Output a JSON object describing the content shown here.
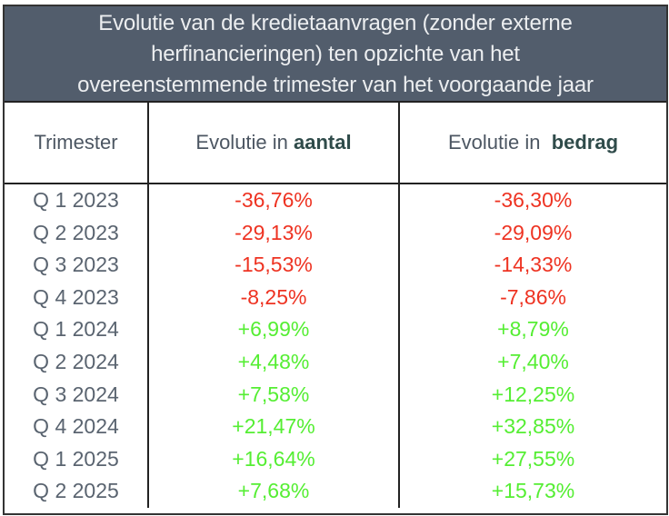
{
  "title_lines": [
    "Evolutie van de kredietaanvragen (zonder externe",
    "herfinancieringen) ten opzichte van het",
    "overeenstemmende trimester van het voorgaande jaar"
  ],
  "colors": {
    "header_bg": "#525d6c",
    "negative": "#ee3322",
    "positive": "#55ee33",
    "bold_heading": "#2f4b4a"
  },
  "chart_data": {
    "type": "table",
    "title": "Evolutie van de kredietaanvragen (zonder externe herfinancieringen) ten opzichte van het overeenstemmende trimester van het voorgaande jaar",
    "columns": [
      {
        "label": "Trimester"
      },
      {
        "prefix": "Evolutie in ",
        "bold": "aantal"
      },
      {
        "prefix": "Evolutie in  ",
        "bold": "bedrag"
      }
    ],
    "rows": [
      {
        "trimester": "Q 1 2023",
        "aantal": "-36,76%",
        "bedrag": "-36,30%"
      },
      {
        "trimester": "Q 2 2023",
        "aantal": "-29,13%",
        "bedrag": "-29,09%"
      },
      {
        "trimester": "Q 3 2023",
        "aantal": "-15,53%",
        "bedrag": "-14,33%"
      },
      {
        "trimester": "Q 4 2023",
        "aantal": "-8,25%",
        "bedrag": "-7,86%"
      },
      {
        "trimester": "Q 1 2024",
        "aantal": "+6,99%",
        "bedrag": "+8,79%"
      },
      {
        "trimester": "Q 2 2024",
        "aantal": "+4,48%",
        "bedrag": "+7,40%"
      },
      {
        "trimester": "Q 3 2024",
        "aantal": "+7,58%",
        "bedrag": "+12,25%"
      },
      {
        "trimester": "Q 4 2024",
        "aantal": "+21,47%",
        "bedrag": "+32,85%"
      },
      {
        "trimester": "Q 1 2025",
        "aantal": "+16,64%",
        "bedrag": "+27,55%"
      },
      {
        "trimester": "Q 2 2025",
        "aantal": "+7,68%",
        "bedrag": "+15,73%"
      }
    ]
  }
}
